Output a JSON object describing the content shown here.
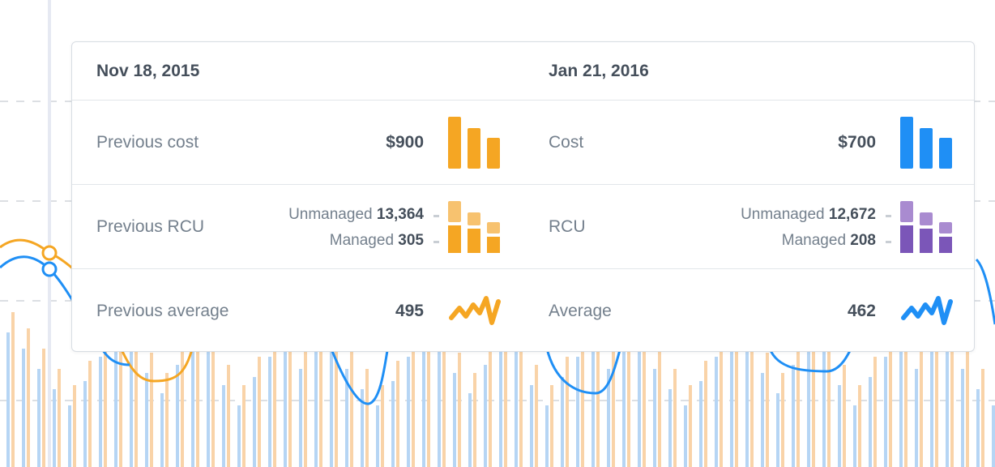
{
  "tooltip": {
    "left": {
      "date": "Nov 18, 2015",
      "cost_label": "Previous cost",
      "cost_value": "$900",
      "rcu_label": "Previous RCU",
      "unmanaged_label": "Unmanaged",
      "unmanaged_value": "13,364",
      "managed_label": "Managed",
      "managed_value": "305",
      "avg_label": "Previous average",
      "avg_value": "495"
    },
    "right": {
      "date": "Jan 21, 2016",
      "cost_label": "Cost",
      "cost_value": "$700",
      "rcu_label": "RCU",
      "unmanaged_label": "Unmanaged",
      "unmanaged_value": "12,672",
      "managed_label": "Managed",
      "managed_value": "208",
      "avg_label": "Average",
      "avg_value": "462"
    }
  },
  "colors": {
    "orange": "#f5a623",
    "blue": "#1f8ff5",
    "purple": "#7b56b8",
    "text_dark": "#454f5b",
    "text_muted": "#74808d"
  },
  "icons": {
    "cost": "bar-chart-icon",
    "rcu": "stacked-bar-chart-icon",
    "average": "sparkline-icon"
  }
}
